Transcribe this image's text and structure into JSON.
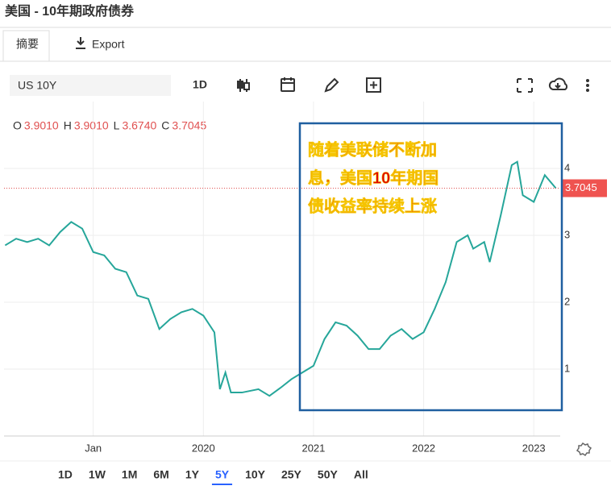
{
  "header": {
    "title": "美国 - 10年期政府债券"
  },
  "tabs": [
    "摘要",
    "Export"
  ],
  "toolbar": {
    "symbol": "US 10Y",
    "interval": "1D"
  },
  "ohlc": {
    "labels": [
      "O",
      "H",
      "L",
      "C"
    ],
    "values": [
      "3.9010",
      "3.9010",
      "3.6740",
      "3.7045"
    ]
  },
  "ranges": [
    "1D",
    "1W",
    "1M",
    "6M",
    "1Y",
    "5Y",
    "10Y",
    "25Y",
    "50Y",
    "All"
  ],
  "active_range": "5Y",
  "chart_data": {
    "type": "line",
    "annotation": [
      "随着美联储不断加",
      "息，美国10年期国",
      "债收益率持续上涨"
    ],
    "x": [
      2018.2,
      2018.3,
      2018.4,
      2018.5,
      2018.6,
      2018.7,
      2018.8,
      2018.9,
      2019.0,
      2019.1,
      2019.2,
      2019.3,
      2019.4,
      2019.5,
      2019.6,
      2019.7,
      2019.8,
      2019.9,
      2020.0,
      2020.1,
      2020.15,
      2020.2,
      2020.25,
      2020.35,
      2020.5,
      2020.6,
      2020.7,
      2020.8,
      2020.9,
      2021.0,
      2021.1,
      2021.2,
      2021.3,
      2021.4,
      2021.5,
      2021.6,
      2021.7,
      2021.8,
      2021.9,
      2022.0,
      2022.1,
      2022.2,
      2022.3,
      2022.4,
      2022.45,
      2022.55,
      2022.6,
      2022.7,
      2022.8,
      2022.85,
      2022.9,
      2023.0,
      2023.1,
      2023.2
    ],
    "series": [
      {
        "name": "US 10Y",
        "color": "#26a69a",
        "values": [
          2.85,
          2.95,
          2.9,
          2.95,
          2.85,
          3.05,
          3.2,
          3.1,
          2.75,
          2.7,
          2.5,
          2.45,
          2.1,
          2.05,
          1.6,
          1.75,
          1.85,
          1.9,
          1.8,
          1.55,
          0.7,
          0.95,
          0.65,
          0.65,
          0.7,
          0.6,
          0.72,
          0.85,
          0.95,
          1.05,
          1.45,
          1.7,
          1.65,
          1.5,
          1.3,
          1.3,
          1.5,
          1.6,
          1.45,
          1.55,
          1.9,
          2.3,
          2.9,
          3.0,
          2.8,
          2.9,
          2.6,
          3.3,
          4.05,
          4.1,
          3.6,
          3.5,
          3.9,
          3.7045
        ]
      }
    ],
    "last_price": {
      "value": 3.7045,
      "label": "3.7045"
    },
    "xlim": [
      2018.19,
      2023.24
    ],
    "xticks": [
      {
        "value": 2019,
        "label": "Jan"
      },
      2020,
      2021,
      2022,
      2023
    ],
    "ylim": [
      0,
      5
    ],
    "yticks": [
      1,
      2,
      3,
      4
    ],
    "grid": true
  }
}
